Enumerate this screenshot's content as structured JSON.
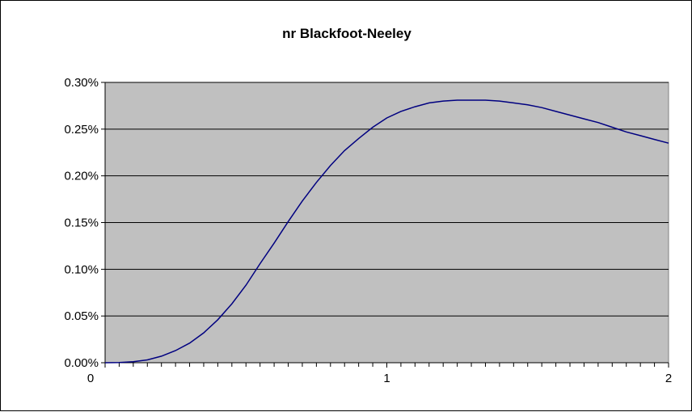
{
  "chart_data": {
    "type": "line",
    "title": "nr Blackfoot-Neeley",
    "xlabel": "",
    "ylabel": "",
    "xlim": [
      0,
      2
    ],
    "ylim": [
      0,
      0.3
    ],
    "x_tick_labels": [
      "0",
      "1",
      "2"
    ],
    "y_tick_labels": [
      "0.00%",
      "0.05%",
      "0.10%",
      "0.15%",
      "0.20%",
      "0.25%",
      "0.30%"
    ],
    "grid": true,
    "legend": "none",
    "colors": {
      "plot_background": "#c0c0c0",
      "line": "#000080",
      "gridline": "#000000"
    },
    "series": [
      {
        "x": [
          0.0,
          0.05,
          0.1,
          0.15,
          0.2,
          0.25,
          0.3,
          0.35,
          0.4,
          0.45,
          0.5,
          0.55,
          0.6,
          0.65,
          0.7,
          0.75,
          0.8,
          0.85,
          0.9,
          0.95,
          1.0,
          1.05,
          1.1,
          1.15,
          1.2,
          1.25,
          1.3,
          1.35,
          1.4,
          1.45,
          1.5,
          1.55,
          1.6,
          1.65,
          1.7,
          1.75,
          1.8,
          1.85,
          1.9,
          1.95,
          2.0
        ],
        "values": [
          0.0,
          0.0002,
          0.001,
          0.003,
          0.007,
          0.013,
          0.021,
          0.032,
          0.046,
          0.063,
          0.083,
          0.106,
          0.128,
          0.151,
          0.173,
          0.193,
          0.211,
          0.227,
          0.24,
          0.252,
          0.262,
          0.269,
          0.274,
          0.278,
          0.28,
          0.281,
          0.281,
          0.281,
          0.28,
          0.278,
          0.276,
          0.273,
          0.269,
          0.265,
          0.261,
          0.257,
          0.252,
          0.247,
          0.243,
          0.239,
          0.235
        ]
      }
    ]
  }
}
